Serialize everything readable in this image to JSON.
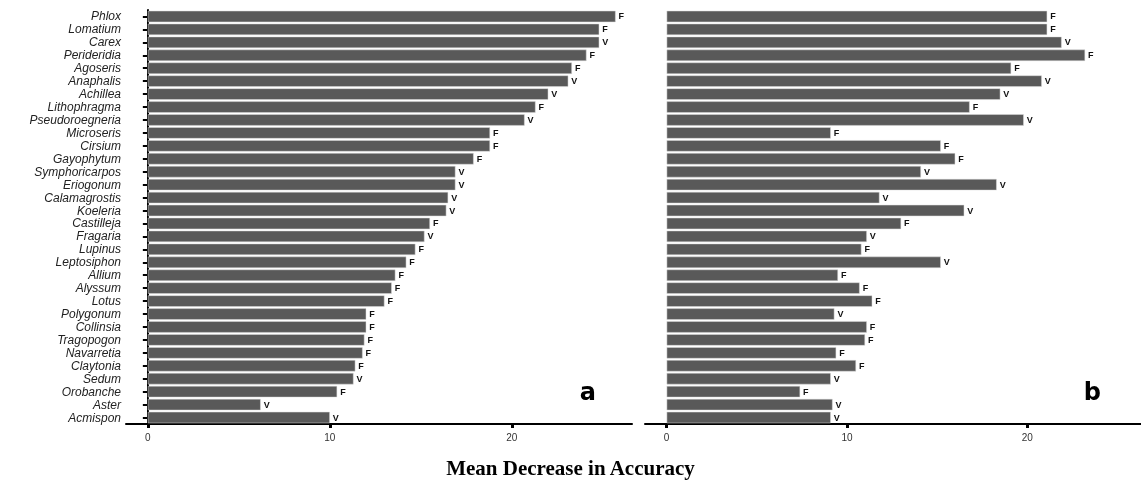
{
  "chart_data": [
    {
      "type": "bar",
      "orientation": "horizontal",
      "xlabel": "Mean Decrease in Accuracy",
      "categories": [
        "Phlox",
        "Lomatium",
        "Carex",
        "Perideridia",
        "Agoseris",
        "Anaphalis",
        "Achillea",
        "Lithophragma",
        "Pseudoroegneria",
        "Microseris",
        "Cirsium",
        "Gayophytum",
        "Symphoricarpos",
        "Eriogonum",
        "Calamagrostis",
        "Koeleria",
        "Castilleja",
        "Fragaria",
        "Lupinus",
        "Leptosiphon",
        "Allium",
        "Alyssum",
        "Lotus",
        "Polygonum",
        "Collinsia",
        "Tragopogon",
        "Navarretia",
        "Claytonia",
        "Sedum",
        "Orobanche",
        "Aster",
        "Acmispon"
      ],
      "values": [
        25.7,
        24.8,
        24.8,
        24.1,
        23.3,
        23.1,
        22.0,
        21.3,
        20.7,
        18.8,
        18.8,
        17.9,
        16.9,
        16.9,
        16.5,
        16.4,
        15.5,
        15.2,
        14.7,
        14.2,
        13.6,
        13.4,
        13.0,
        12.0,
        12.0,
        11.9,
        11.8,
        11.4,
        11.3,
        10.4,
        6.2,
        10.0
      ],
      "value_labels": [
        "F",
        "F",
        "V",
        "F",
        "F",
        "V",
        "V",
        "F",
        "V",
        "F",
        "F",
        "F",
        "V",
        "V",
        "V",
        "V",
        "F",
        "V",
        "F",
        "F",
        "F",
        "F",
        "F",
        "F",
        "F",
        "F",
        "F",
        "F",
        "V",
        "F",
        "V",
        "V"
      ],
      "color": "#595959",
      "xlim": [
        -1.2,
        26.6
      ],
      "xticks": [
        0,
        10,
        20
      ],
      "grid": false,
      "annotations": [
        "a"
      ]
    },
    {
      "type": "bar",
      "orientation": "horizontal",
      "categories": [
        "Phlox",
        "Lomatium",
        "Carex",
        "Perideridia",
        "Agoseris",
        "Anaphalis",
        "Achillea",
        "Lithophragma",
        "Pseudoroegneria",
        "Microseris",
        "Cirsium",
        "Gayophytum",
        "Symphoricarpos",
        "Eriogonum",
        "Calamagrostis",
        "Koeleria",
        "Castilleja",
        "Fragaria",
        "Lupinus",
        "Leptosiphon",
        "Allium",
        "Alyssum",
        "Lotus",
        "Polygonum",
        "Collinsia",
        "Tragopogon",
        "Navarretia",
        "Claytonia",
        "Sedum",
        "Orobanche",
        "Aster",
        "Acmispon"
      ],
      "values": [
        21.1,
        21.1,
        21.9,
        23.2,
        19.1,
        20.8,
        18.5,
        16.8,
        19.8,
        9.1,
        15.2,
        16.0,
        14.1,
        18.3,
        11.8,
        16.5,
        13.0,
        11.1,
        10.8,
        15.2,
        9.5,
        10.7,
        11.4,
        9.3,
        11.1,
        11.0,
        9.4,
        10.5,
        9.1,
        7.4,
        9.2,
        9.1
      ],
      "value_labels": [
        "F",
        "F",
        "V",
        "F",
        "F",
        "V",
        "V",
        "F",
        "V",
        "F",
        "F",
        "F",
        "V",
        "V",
        "V",
        "V",
        "F",
        "V",
        "F",
        "V",
        "F",
        "F",
        "F",
        "V",
        "F",
        "F",
        "F",
        "F",
        "V",
        "F",
        "V",
        "V"
      ],
      "color": "#595959",
      "xlim": [
        -1.2,
        26.3
      ],
      "xticks": [
        0,
        10,
        20
      ],
      "grid": false,
      "tick_labels": "x",
      "annotations": [
        "b"
      ]
    }
  ]
}
